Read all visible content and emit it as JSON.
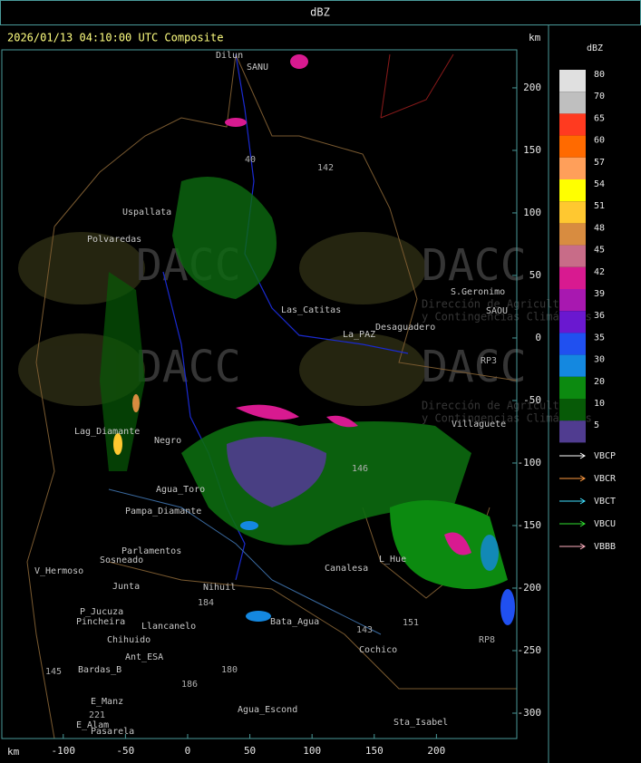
{
  "header": "dBZ",
  "title": "2026/01/13 04:10:00 UTC Composite",
  "map": {
    "x_unit": "km",
    "y_unit": "km",
    "xlim": [
      -149.4,
      264.6
    ],
    "ylim": [
      -320.3,
      230.4
    ],
    "xticks": [
      -100,
      -50,
      0,
      50,
      100,
      150,
      200
    ],
    "yticks": [
      200,
      150,
      100,
      50,
      0,
      -50,
      -100,
      -150,
      -200,
      -250,
      -300
    ],
    "watermark": [
      "DACC",
      "Dirección de Agricultura",
      "y Contingencias Climáticas"
    ],
    "places": [
      "Dilun",
      "SANU",
      "Uspallata",
      "Polvaredas",
      "S.Geronimo",
      "SAOU",
      "Desaguadero",
      "La_PAZ",
      "Las_Catitas",
      "Lag_Diamante",
      "Negro",
      "Agua_Toro",
      "Pampa_Diamante",
      "Parlamentos",
      "Sosneado",
      "V_Hermoso",
      "Nihuil",
      "Junta",
      "P_Jucuza",
      "Pincheira",
      "Llancanelo",
      "Chihuido",
      "Ant_ESA",
      "Bardas_B",
      "E_Manz",
      "E_Alam",
      "Pasarela",
      "Agua_Escond",
      "Bata_Agua",
      "Cochico",
      "Sta_Isabel",
      "Canalesa",
      "L_Hue",
      "Villaguete",
      "142",
      "40",
      "143",
      "146",
      "151",
      "184",
      "180",
      "186",
      "145",
      "221",
      "RP3",
      "RP8"
    ]
  },
  "legend": {
    "title": "dBZ",
    "levels": [
      80,
      70,
      65,
      60,
      57,
      54,
      51,
      48,
      45,
      42,
      39,
      36,
      35,
      30,
      20,
      10,
      5
    ],
    "colors": [
      "#e0e0e0",
      "#bfbfbf",
      "#ff3a20",
      "#ff6a00",
      "#ff9f5a",
      "#ffff00",
      "#ffc830",
      "#d88c40",
      "#c86c88",
      "#d81a90",
      "#a818b0",
      "#6a18d0",
      "#2050f0",
      "#1488e0",
      "#0c8a10",
      "#075a07",
      "#503c90"
    ],
    "tracks": [
      {
        "name": "VBCP",
        "color": "#ffffff"
      },
      {
        "name": "VBCR",
        "color": "#ff9a40"
      },
      {
        "name": "VBCT",
        "color": "#40e0ff"
      },
      {
        "name": "VBCU",
        "color": "#30e030"
      },
      {
        "name": "VBBB",
        "color": "#ffb0c0"
      }
    ]
  }
}
